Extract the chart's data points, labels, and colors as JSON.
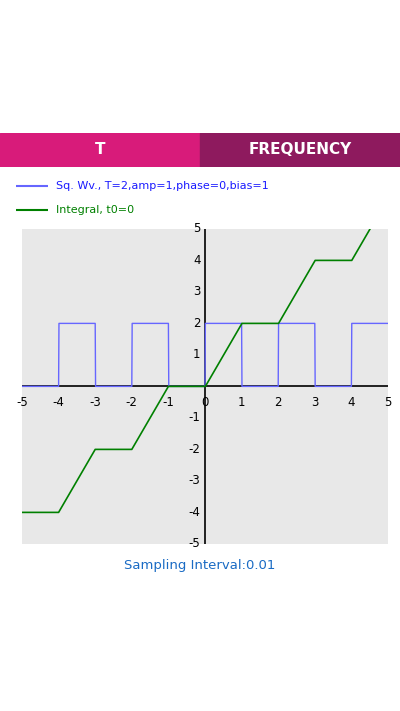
{
  "title_line1": "Sq. Wv., T=2,amp=1,phase=0,bias=1",
  "title_line2": "Integral, t0=0",
  "sq_color": "#6666ff",
  "integral_color": "#008000",
  "sampling_label": "Sampling Interval:0.01",
  "sampling_color": "#1a6bc4",
  "xlim": [
    -5,
    5
  ],
  "ylim": [
    -5,
    5
  ],
  "T": 2,
  "amp": 1,
  "bias": 1,
  "phase": 0,
  "t0": 0,
  "plot_bg": "#e8e8e8",
  "grid_color": "#ffffff",
  "tab_active_color": "#d81b7a",
  "tab_active_text": "T",
  "tab_inactive_text": "FREQUENCY",
  "tab_inactive_color": "#8e1a5e",
  "fig_bg": "#ffffff",
  "status_bar_color": "#1565c0",
  "toolbar_color": "#1976d2",
  "status_bar_height": 0.042,
  "toolbar_height": 0.055,
  "tab_height": 0.048,
  "legend_blue_text_color": "#1a1aff",
  "legend_green_text_color": "#008000"
}
